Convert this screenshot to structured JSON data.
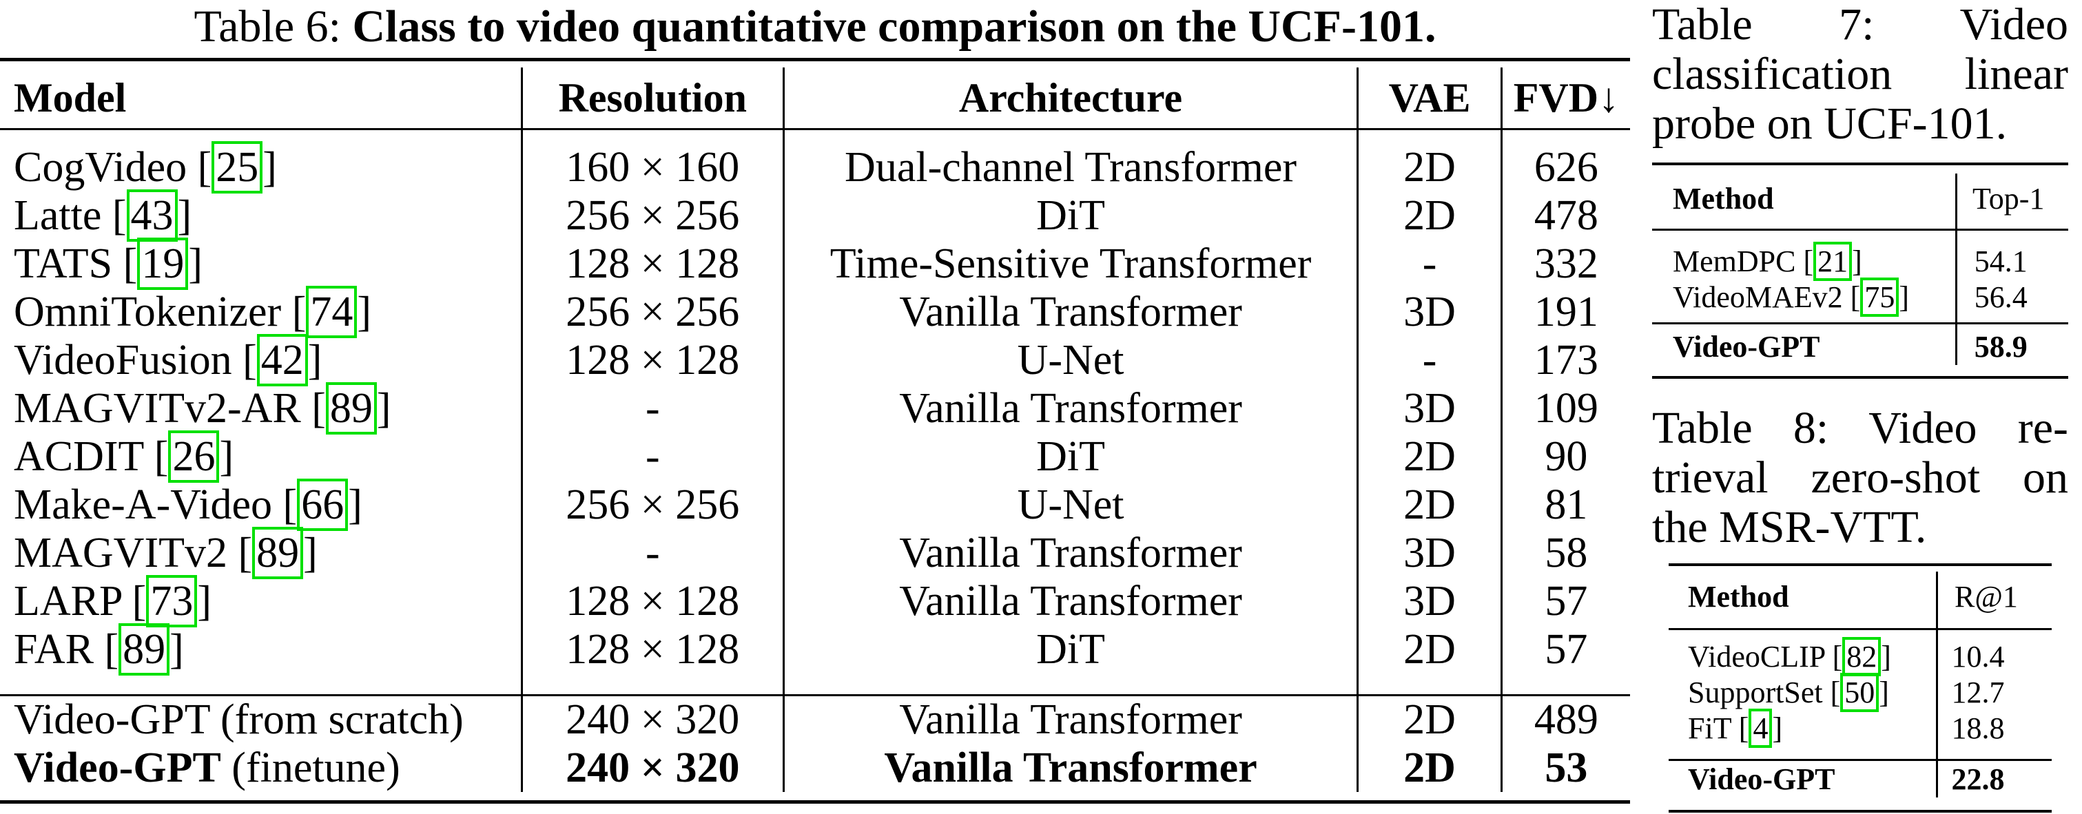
{
  "table6": {
    "caption_prefix": "Table 6: ",
    "caption_bold": "Class to video quantitative comparison on the UCF-101.",
    "headers": [
      "Model",
      "Resolution",
      "Architecture",
      "VAE",
      "FVD↓"
    ],
    "rows": [
      {
        "model": "CogVideo [",
        "cite": "25",
        "close": "]",
        "resolution": "160 × 160",
        "architecture": "Dual-channel Transformer",
        "vae": "2D",
        "fvd": "626"
      },
      {
        "model": "Latte [",
        "cite": "43",
        "close": "]",
        "resolution": "256 × 256",
        "architecture": "DiT",
        "vae": "2D",
        "fvd": "478"
      },
      {
        "model": "TATS [",
        "cite": "19",
        "close": "]",
        "resolution": "128 × 128",
        "architecture": "Time-Sensitive Transformer",
        "vae": "-",
        "fvd": "332"
      },
      {
        "model": "OmniTokenizer [",
        "cite": "74",
        "close": "]",
        "resolution": "256 × 256",
        "architecture": "Vanilla Transformer",
        "vae": "3D",
        "fvd": "191"
      },
      {
        "model": "VideoFusion [",
        "cite": "42",
        "close": "]",
        "resolution": "128 × 128",
        "architecture": "U-Net",
        "vae": "-",
        "fvd": "173"
      },
      {
        "model": "MAGVITv2-AR [",
        "cite": "89",
        "close": "]",
        "resolution": "-",
        "architecture": "Vanilla Transformer",
        "vae": "3D",
        "fvd": "109"
      },
      {
        "model": "ACDIT [",
        "cite": "26",
        "close": "]",
        "resolution": "-",
        "architecture": "DiT",
        "vae": "2D",
        "fvd": "90"
      },
      {
        "model": "Make-A-Video [",
        "cite": "66",
        "close": "]",
        "resolution": "256 × 256",
        "architecture": "U-Net",
        "vae": "2D",
        "fvd": "81"
      },
      {
        "model": "MAGVITv2 [",
        "cite": "89",
        "close": "]",
        "resolution": "-",
        "architecture": "Vanilla Transformer",
        "vae": "3D",
        "fvd": "58"
      },
      {
        "model": "LARP [",
        "cite": "73",
        "close": "]",
        "resolution": "128 × 128",
        "architecture": "Vanilla Transformer",
        "vae": "3D",
        "fvd": "57"
      },
      {
        "model": "FAR [",
        "cite": "89",
        "close": "]",
        "resolution": "128 × 128",
        "architecture": "DiT",
        "vae": "2D",
        "fvd": "57"
      }
    ],
    "ours": [
      {
        "model_bold": "",
        "model": "Video-GPT (from scratch)",
        "resolution": "240 × 320",
        "architecture": "Vanilla Transformer",
        "vae": "2D",
        "fvd": "489"
      },
      {
        "model_bold": "Video-GPT",
        "model": " (finetune)",
        "resolution": "240 × 320",
        "architecture": "Vanilla Transformer",
        "vae": "2D",
        "fvd": "53"
      }
    ]
  },
  "table7": {
    "caption": "Table 7: Video classification linear probe on UCF-101.",
    "caption_lines": [
      "Table 7: Video",
      "classification linear",
      "probe on UCF-101."
    ],
    "headers": [
      "Method",
      "Top-1"
    ],
    "rows": [
      {
        "method": "MemDPC [",
        "cite": "21",
        "close": "]",
        "value": "54.1"
      },
      {
        "method": "VideoMAEv2 [",
        "cite": "75",
        "close": "]",
        "value": "56.4"
      }
    ],
    "ours": {
      "method": "Video-GPT",
      "value": "58.9"
    }
  },
  "table8": {
    "caption_lines": [
      "Table 8: Video re-",
      "trieval zero-shot on",
      "the MSR-VTT."
    ],
    "headers": [
      "Method",
      "R@1"
    ],
    "rows": [
      {
        "method": "VideoCLIP [",
        "cite": "82",
        "close": "]",
        "value": "10.4"
      },
      {
        "method": "SupportSet [",
        "cite": "50",
        "close": "]",
        "value": "12.7"
      },
      {
        "method": "FiT [",
        "cite": "4",
        "close": "]",
        "value": "18.8"
      }
    ],
    "ours": {
      "method": "Video-GPT",
      "value": "22.8"
    }
  },
  "colors": {
    "citation_box": "#00e000",
    "text": "#000000",
    "background": "#ffffff"
  }
}
